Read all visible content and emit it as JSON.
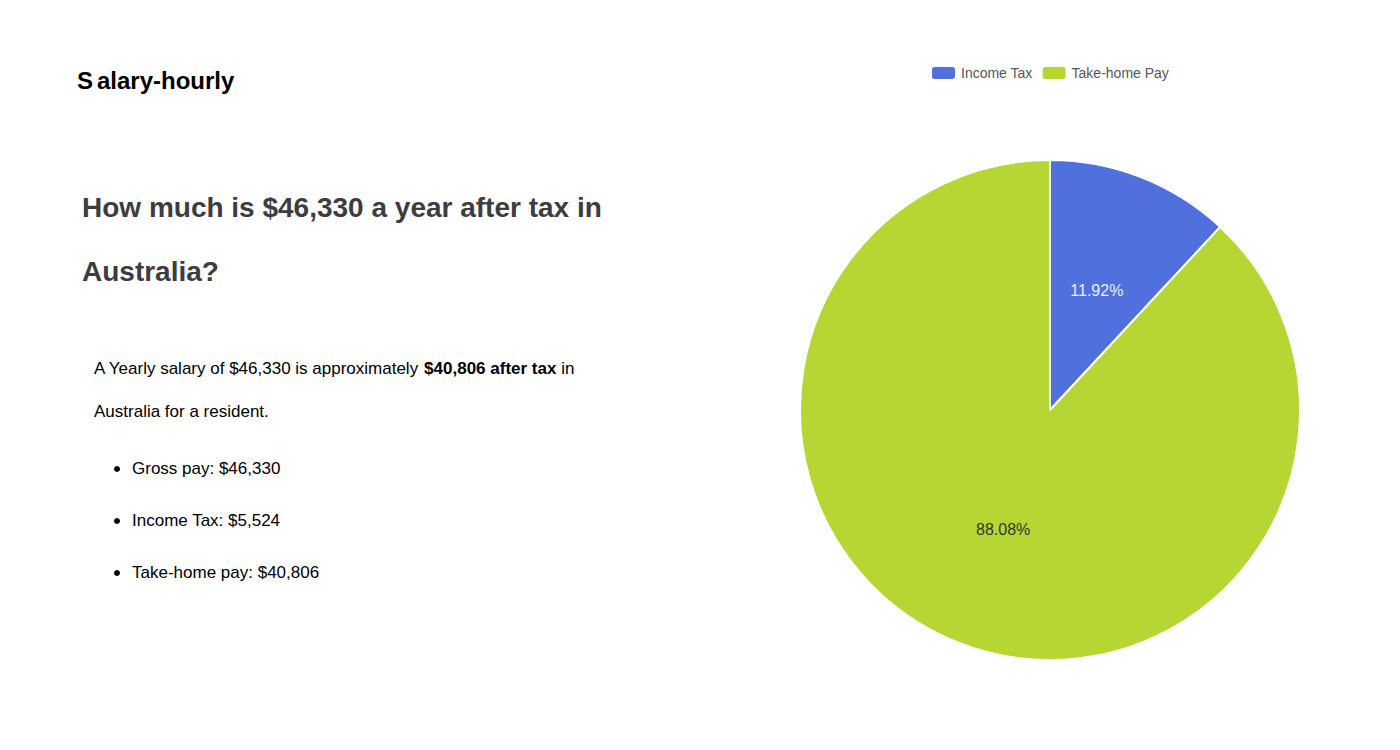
{
  "chart_data": {
    "type": "pie",
    "title": "How much is $46,330 a year after tax in\nAustralia?",
    "annotations": {
      "logo": [
        "S",
        "alary-hourly"
      ],
      "paragraph": [
        [
          "A Yearly salary of $46,330 is approximately ",
          "$40,806 after tax",
          " in"
        ],
        [
          "Australia for a resident."
        ]
      ],
      "bullets": [
        "Gross pay: $46,330",
        "Income Tax: $5,524",
        "Take-home pay: $40,806"
      ]
    },
    "categories": [
      "Income Tax",
      "Take-home Pay"
    ],
    "values": [
      11.92,
      88.08
    ],
    "value_labels": [
      "11.92%",
      "88.08%"
    ],
    "data_labels": true,
    "legend": "top"
  }
}
